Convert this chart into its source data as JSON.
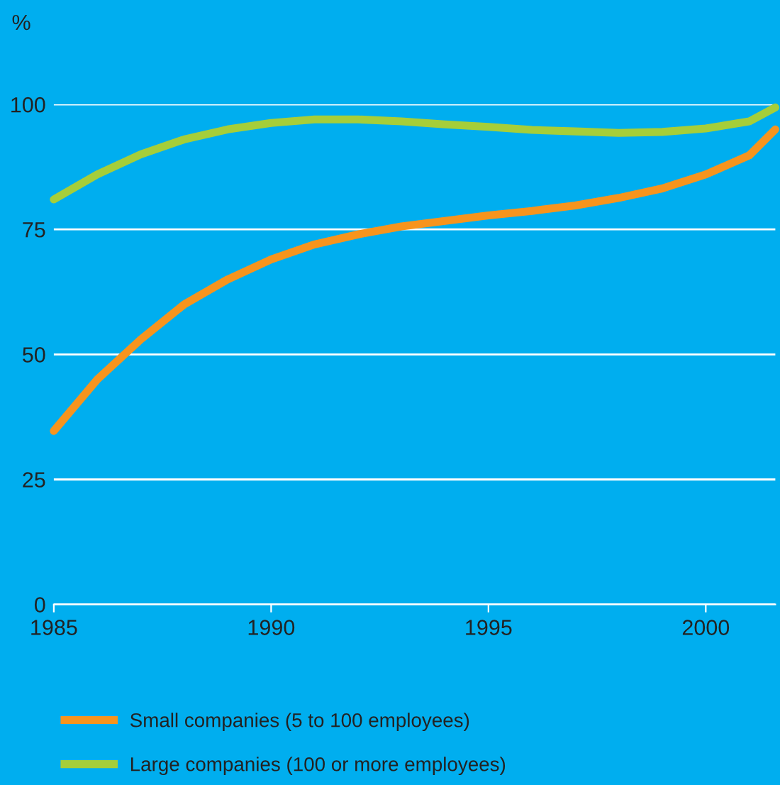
{
  "chart_data": {
    "type": "line",
    "ylabel": "%",
    "xlim": [
      1985,
      2001.6
    ],
    "ylim": [
      0,
      100
    ],
    "xticks": [
      1985,
      1990,
      1995,
      2000
    ],
    "yticks": [
      0,
      25,
      50,
      75,
      100
    ],
    "grid": "y",
    "legend": "bottom",
    "marker": "none",
    "line_style": "solid",
    "series": [
      {
        "name": "Small companies (5 to 100 employees)",
        "color": "#f7941d",
        "x": [
          1985,
          1986,
          1987,
          1988,
          1989,
          1990,
          1991,
          1992,
          1993,
          1994,
          1995,
          1996,
          1997,
          1998,
          1999,
          2000,
          2001,
          2001.6
        ],
        "values": [
          34.7,
          45,
          53,
          60,
          65,
          69,
          72,
          74,
          75.6,
          76.7,
          77.8,
          78.7,
          79.8,
          81.3,
          83.2,
          86,
          89.8,
          95
        ]
      },
      {
        "name": "Large companies (100 or more employees)",
        "color": "#a6ce39",
        "x": [
          1985,
          1986,
          1987,
          1988,
          1989,
          1990,
          1991,
          1992,
          1993,
          1994,
          1995,
          1996,
          1997,
          1998,
          1999,
          2000,
          2001,
          2001.6
        ],
        "values": [
          81,
          86,
          90,
          93,
          95,
          96.3,
          97,
          97,
          96.6,
          96,
          95.5,
          94.9,
          94.6,
          94.3,
          94.5,
          95.2,
          96.6,
          99.4
        ]
      }
    ]
  }
}
